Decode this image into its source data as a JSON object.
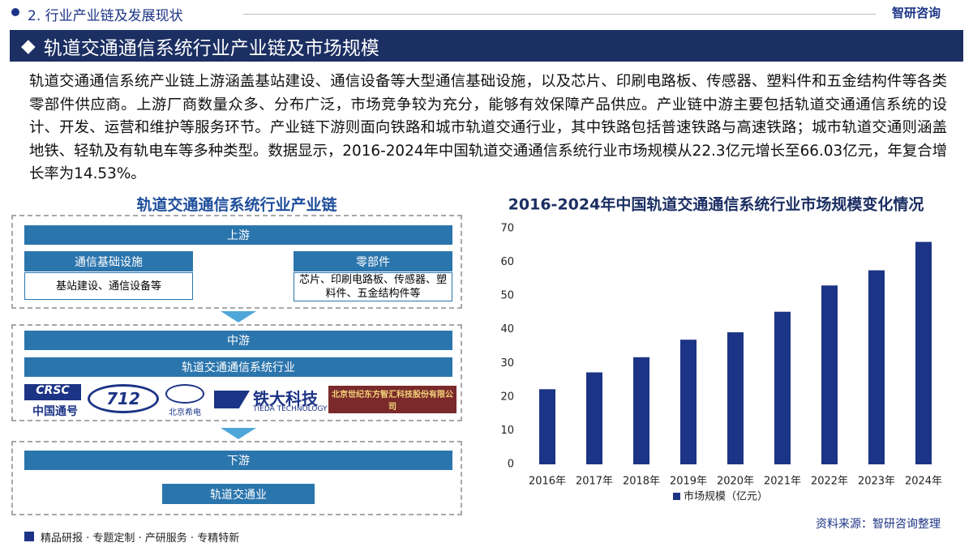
{
  "header": {
    "section": "2. 行业产业链及发展现状",
    "brand": "智研咨询",
    "title": "轨道交通通信系统行业产业链及市场规模"
  },
  "paragraph": "轨道交通通信系统产业链上游涵盖基站建设、通信设备等大型通信基础设施，以及芯片、印刷电路板、传感器、塑料件和五金结构件等各类零部件供应商。上游厂商数量众多、分布广泛，市场竞争较为充分，能够有效保障产品供应。产业链中游主要包括轨道交通通信系统的设计、开发、运营和维护等服务环节。产业链下游则面向铁路和城市轨道交通行业，其中铁路包括普速铁路与高速铁路；城市轨道交通则涵盖地铁、轻轨及有轨电车等多种类型。数据显示，2016-2024年中国轨道交通通信系统行业市场规模从22.3亿元增长至66.03亿元，年复合增长率为14.53%。",
  "diagram": {
    "title": "轨道交通通信系统行业产业链",
    "upstream": {
      "label": "上游",
      "left_title": "通信基础设施",
      "left_text": "基站建设、通信设备等",
      "right_title": "零部件",
      "right_text": "芯片、印刷电路板、传感器、塑料件、五金结构件等"
    },
    "midstream": {
      "label": "中游",
      "sub": "轨道交通通信系统行业",
      "logos": [
        "CRSC",
        "中国通号",
        "712",
        "北京希电",
        "铁大科技",
        "TIEDA TECHNOLOGY",
        "北京世纪东方智汇科技股份有限公司"
      ]
    },
    "downstream": {
      "label": "下游",
      "sub": "轨道交通业"
    }
  },
  "chart_data": {
    "type": "bar",
    "title": "2016-2024年中国轨道交通通信系统行业市场规模变化情况",
    "categories": [
      "2016年",
      "2017年",
      "2018年",
      "2019年",
      "2020年",
      "2021年",
      "2022年",
      "2023年",
      "2024年"
    ],
    "series": [
      {
        "name": "市场规模（亿元）",
        "color": "#1c3486",
        "values": [
          22.3,
          27.3,
          31.8,
          37,
          39.2,
          45.3,
          53.1,
          57.6,
          66.03
        ]
      }
    ],
    "ylim": [
      0,
      70
    ],
    "yticks": [
      0,
      10,
      20,
      30,
      40,
      50,
      60,
      70
    ],
    "grid": false,
    "legend": "bottom"
  },
  "source": "资料来源：智研咨询整理",
  "footer": "精品研报 · 专题定制 · 产研服务 · 专精特新"
}
